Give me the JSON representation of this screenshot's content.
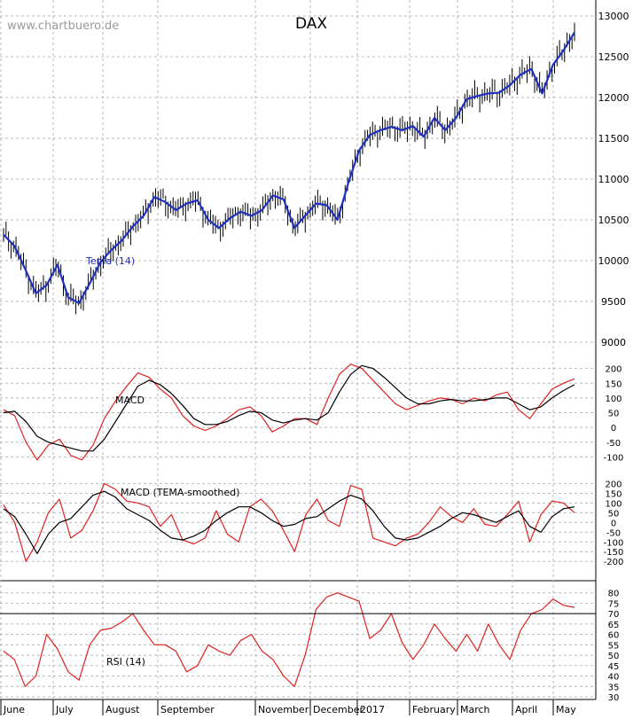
{
  "watermark": "www.chartbuero.de",
  "colors": {
    "price_bars": "#000000",
    "tema_line": "#1f2fbf",
    "macd_line": "#e02020",
    "signal_line": "#000000",
    "rsi_line": "#e02020",
    "grid": "#b8b8b8",
    "rsi_reference": "#000000"
  },
  "chart_data": [
    {
      "type": "line",
      "title": "DAX",
      "series": [
        {
          "name": "Tema (14)",
          "values": [
            10320,
            10180,
            9900,
            9600,
            9700,
            9950,
            9550,
            9480,
            9720,
            9980,
            10130,
            10250,
            10420,
            10550,
            10780,
            10720,
            10620,
            10700,
            10740,
            10500,
            10400,
            10520,
            10600,
            10550,
            10620,
            10800,
            10750,
            10400,
            10550,
            10700,
            10680,
            10500,
            10950,
            11350,
            11540,
            11600,
            11640,
            11600,
            11650,
            11520,
            11750,
            11600,
            11750,
            11980,
            12020,
            12050,
            12060,
            12150,
            12280,
            12350,
            12050,
            12400,
            12580,
            12800
          ]
        }
      ],
      "categories": [
        "2016-06-01",
        "2016-06-06",
        "2016-06-13",
        "2016-06-20",
        "2016-06-24",
        "2016-06-27",
        "2016-07-01",
        "2016-07-06",
        "2016-07-11",
        "2016-07-18",
        "2016-07-25",
        "2016-08-01",
        "2016-08-08",
        "2016-08-15",
        "2016-08-22",
        "2016-08-29",
        "2016-09-05",
        "2016-09-12",
        "2016-09-19",
        "2016-09-26",
        "2016-10-03",
        "2016-10-10",
        "2016-10-17",
        "2016-10-24",
        "2016-10-31",
        "2016-11-07",
        "2016-11-14",
        "2016-11-21",
        "2016-11-28",
        "2016-12-05",
        "2016-12-12",
        "2016-12-19",
        "2016-12-26",
        "2017-01-02",
        "2017-01-09",
        "2017-01-16",
        "2017-01-23",
        "2017-01-30",
        "2017-02-06",
        "2017-02-13",
        "2017-02-20",
        "2017-02-27",
        "2017-03-06",
        "2017-03-13",
        "2017-03-20",
        "2017-03-27",
        "2017-04-03",
        "2017-04-10",
        "2017-04-17",
        "2017-04-24",
        "2017-05-01",
        "2017-05-08",
        "2017-05-15",
        "2017-05-22"
      ],
      "ylim": [
        9000,
        13000
      ],
      "yticks": [
        "13000",
        "12500",
        "12000",
        "11500",
        "11000",
        "10500",
        "10000",
        "9500",
        "9000"
      ],
      "grid": true,
      "legend": "annotation"
    },
    {
      "type": "line",
      "label": "MACD",
      "series": [
        {
          "values": [
            60,
            40,
            -50,
            -110,
            -60,
            -40,
            -95,
            -110,
            -60,
            30,
            90,
            140,
            185,
            170,
            130,
            100,
            40,
            5,
            -10,
            5,
            30,
            60,
            70,
            40,
            -15,
            5,
            30,
            30,
            10,
            100,
            180,
            215,
            200,
            160,
            120,
            80,
            60,
            75,
            90,
            100,
            95,
            80,
            100,
            90,
            110,
            120,
            60,
            30,
            80,
            130,
            150,
            165
          ]
        },
        {
          "values": [
            50,
            55,
            20,
            -30,
            -50,
            -60,
            -70,
            -80,
            -80,
            -40,
            20,
            80,
            140,
            160,
            145,
            115,
            75,
            30,
            10,
            10,
            20,
            40,
            55,
            50,
            25,
            15,
            25,
            30,
            25,
            50,
            120,
            180,
            210,
            200,
            170,
            135,
            100,
            80,
            80,
            90,
            95,
            90,
            90,
            95,
            100,
            100,
            80,
            60,
            70,
            100,
            125,
            145
          ]
        }
      ],
      "ylim": [
        -150,
        220
      ],
      "yticks": [
        "200",
        "150",
        "100",
        "50",
        "0",
        "-50",
        "-100"
      ],
      "grid": true
    },
    {
      "type": "line",
      "label": "MACD (TEMA-smoothed)",
      "series": [
        {
          "values": [
            90,
            0,
            -200,
            -100,
            50,
            120,
            -80,
            -40,
            60,
            200,
            170,
            110,
            100,
            80,
            -20,
            40,
            -90,
            -110,
            -80,
            60,
            -60,
            -100,
            80,
            120,
            60,
            -40,
            -150,
            40,
            120,
            10,
            -20,
            190,
            170,
            -80,
            -100,
            -120,
            -80,
            -60,
            0,
            80,
            30,
            0,
            70,
            -10,
            -20,
            40,
            110,
            -100,
            40,
            110,
            100,
            50
          ]
        },
        {
          "values": [
            70,
            30,
            -60,
            -160,
            -60,
            0,
            20,
            80,
            140,
            160,
            130,
            70,
            40,
            10,
            -40,
            -80,
            -90,
            -70,
            -40,
            10,
            50,
            80,
            80,
            50,
            10,
            -20,
            -10,
            20,
            30,
            70,
            110,
            140,
            120,
            60,
            -20,
            -80,
            -90,
            -80,
            -50,
            -20,
            20,
            50,
            40,
            20,
            0,
            30,
            60,
            -20,
            -50,
            30,
            70,
            80
          ]
        }
      ],
      "ylim": [
        -240,
        220
      ],
      "yticks": [
        "200",
        "150",
        "100",
        "50",
        "0",
        "-50",
        "-100",
        "-150",
        "-200"
      ],
      "grid": true
    },
    {
      "type": "line",
      "label": "RSI (14)",
      "series": [
        {
          "values": [
            52,
            48,
            35,
            40,
            60,
            53,
            42,
            38,
            55,
            62,
            63,
            66,
            70,
            62,
            55,
            55,
            52,
            42,
            45,
            55,
            52,
            50,
            57,
            60,
            52,
            48,
            40,
            35,
            50,
            72,
            78,
            80,
            78,
            76,
            58,
            62,
            70,
            56,
            48,
            55,
            65,
            58,
            52,
            60,
            52,
            65,
            55,
            48,
            62,
            70,
            72,
            77,
            74,
            73
          ]
        }
      ],
      "ylim": [
        30,
        82
      ],
      "yticks": [
        "80",
        "75",
        "70",
        "65",
        "60",
        "55",
        "50",
        "45",
        "40",
        "35",
        "30"
      ],
      "reference_lines": [
        70
      ],
      "grid": true
    }
  ],
  "x_axis": {
    "months": [
      "June",
      "July",
      "August",
      "September",
      "November",
      "December",
      "2017",
      "February",
      "March",
      "April",
      "May"
    ]
  }
}
